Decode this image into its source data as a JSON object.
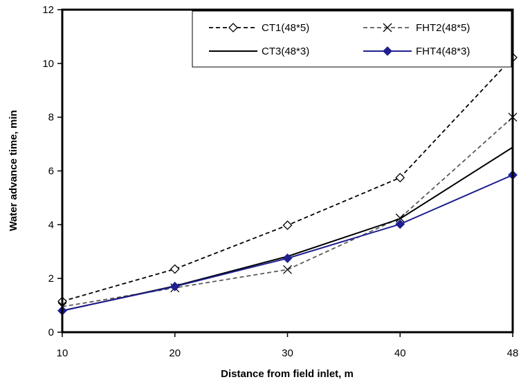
{
  "chart_data": {
    "type": "line",
    "title": "",
    "xlabel": "Distance from field inlet, m",
    "ylabel": "Water advance time, min",
    "categories": [
      "10",
      "20",
      "30",
      "40",
      "48"
    ],
    "ylim": [
      0,
      12
    ],
    "yticks": [
      "0",
      "2",
      "4",
      "6",
      "8",
      "10",
      "12"
    ],
    "grid": false,
    "legend_position": "top-right",
    "series": [
      {
        "name": "CT1(48*5)",
        "values": [
          1.15,
          2.35,
          3.98,
          5.75,
          10.22
        ],
        "color": "#000000",
        "dash": "dashed",
        "marker": "diamond-open"
      },
      {
        "name": "FHT2(48*5)",
        "values": [
          0.95,
          1.65,
          2.33,
          4.25,
          8.0
        ],
        "color": "#595959",
        "dash": "dashed",
        "marker": "x"
      },
      {
        "name": "CT3(48*3)",
        "values": [
          0.8,
          1.72,
          2.82,
          4.22,
          6.88
        ],
        "color": "#000000",
        "dash": "solid",
        "marker": "none"
      },
      {
        "name": "FHT4(48*3)",
        "values": [
          0.8,
          1.7,
          2.75,
          4.02,
          5.85
        ],
        "color": "#1f1f8f",
        "dash": "solid",
        "marker": "diamond-filled"
      }
    ]
  }
}
